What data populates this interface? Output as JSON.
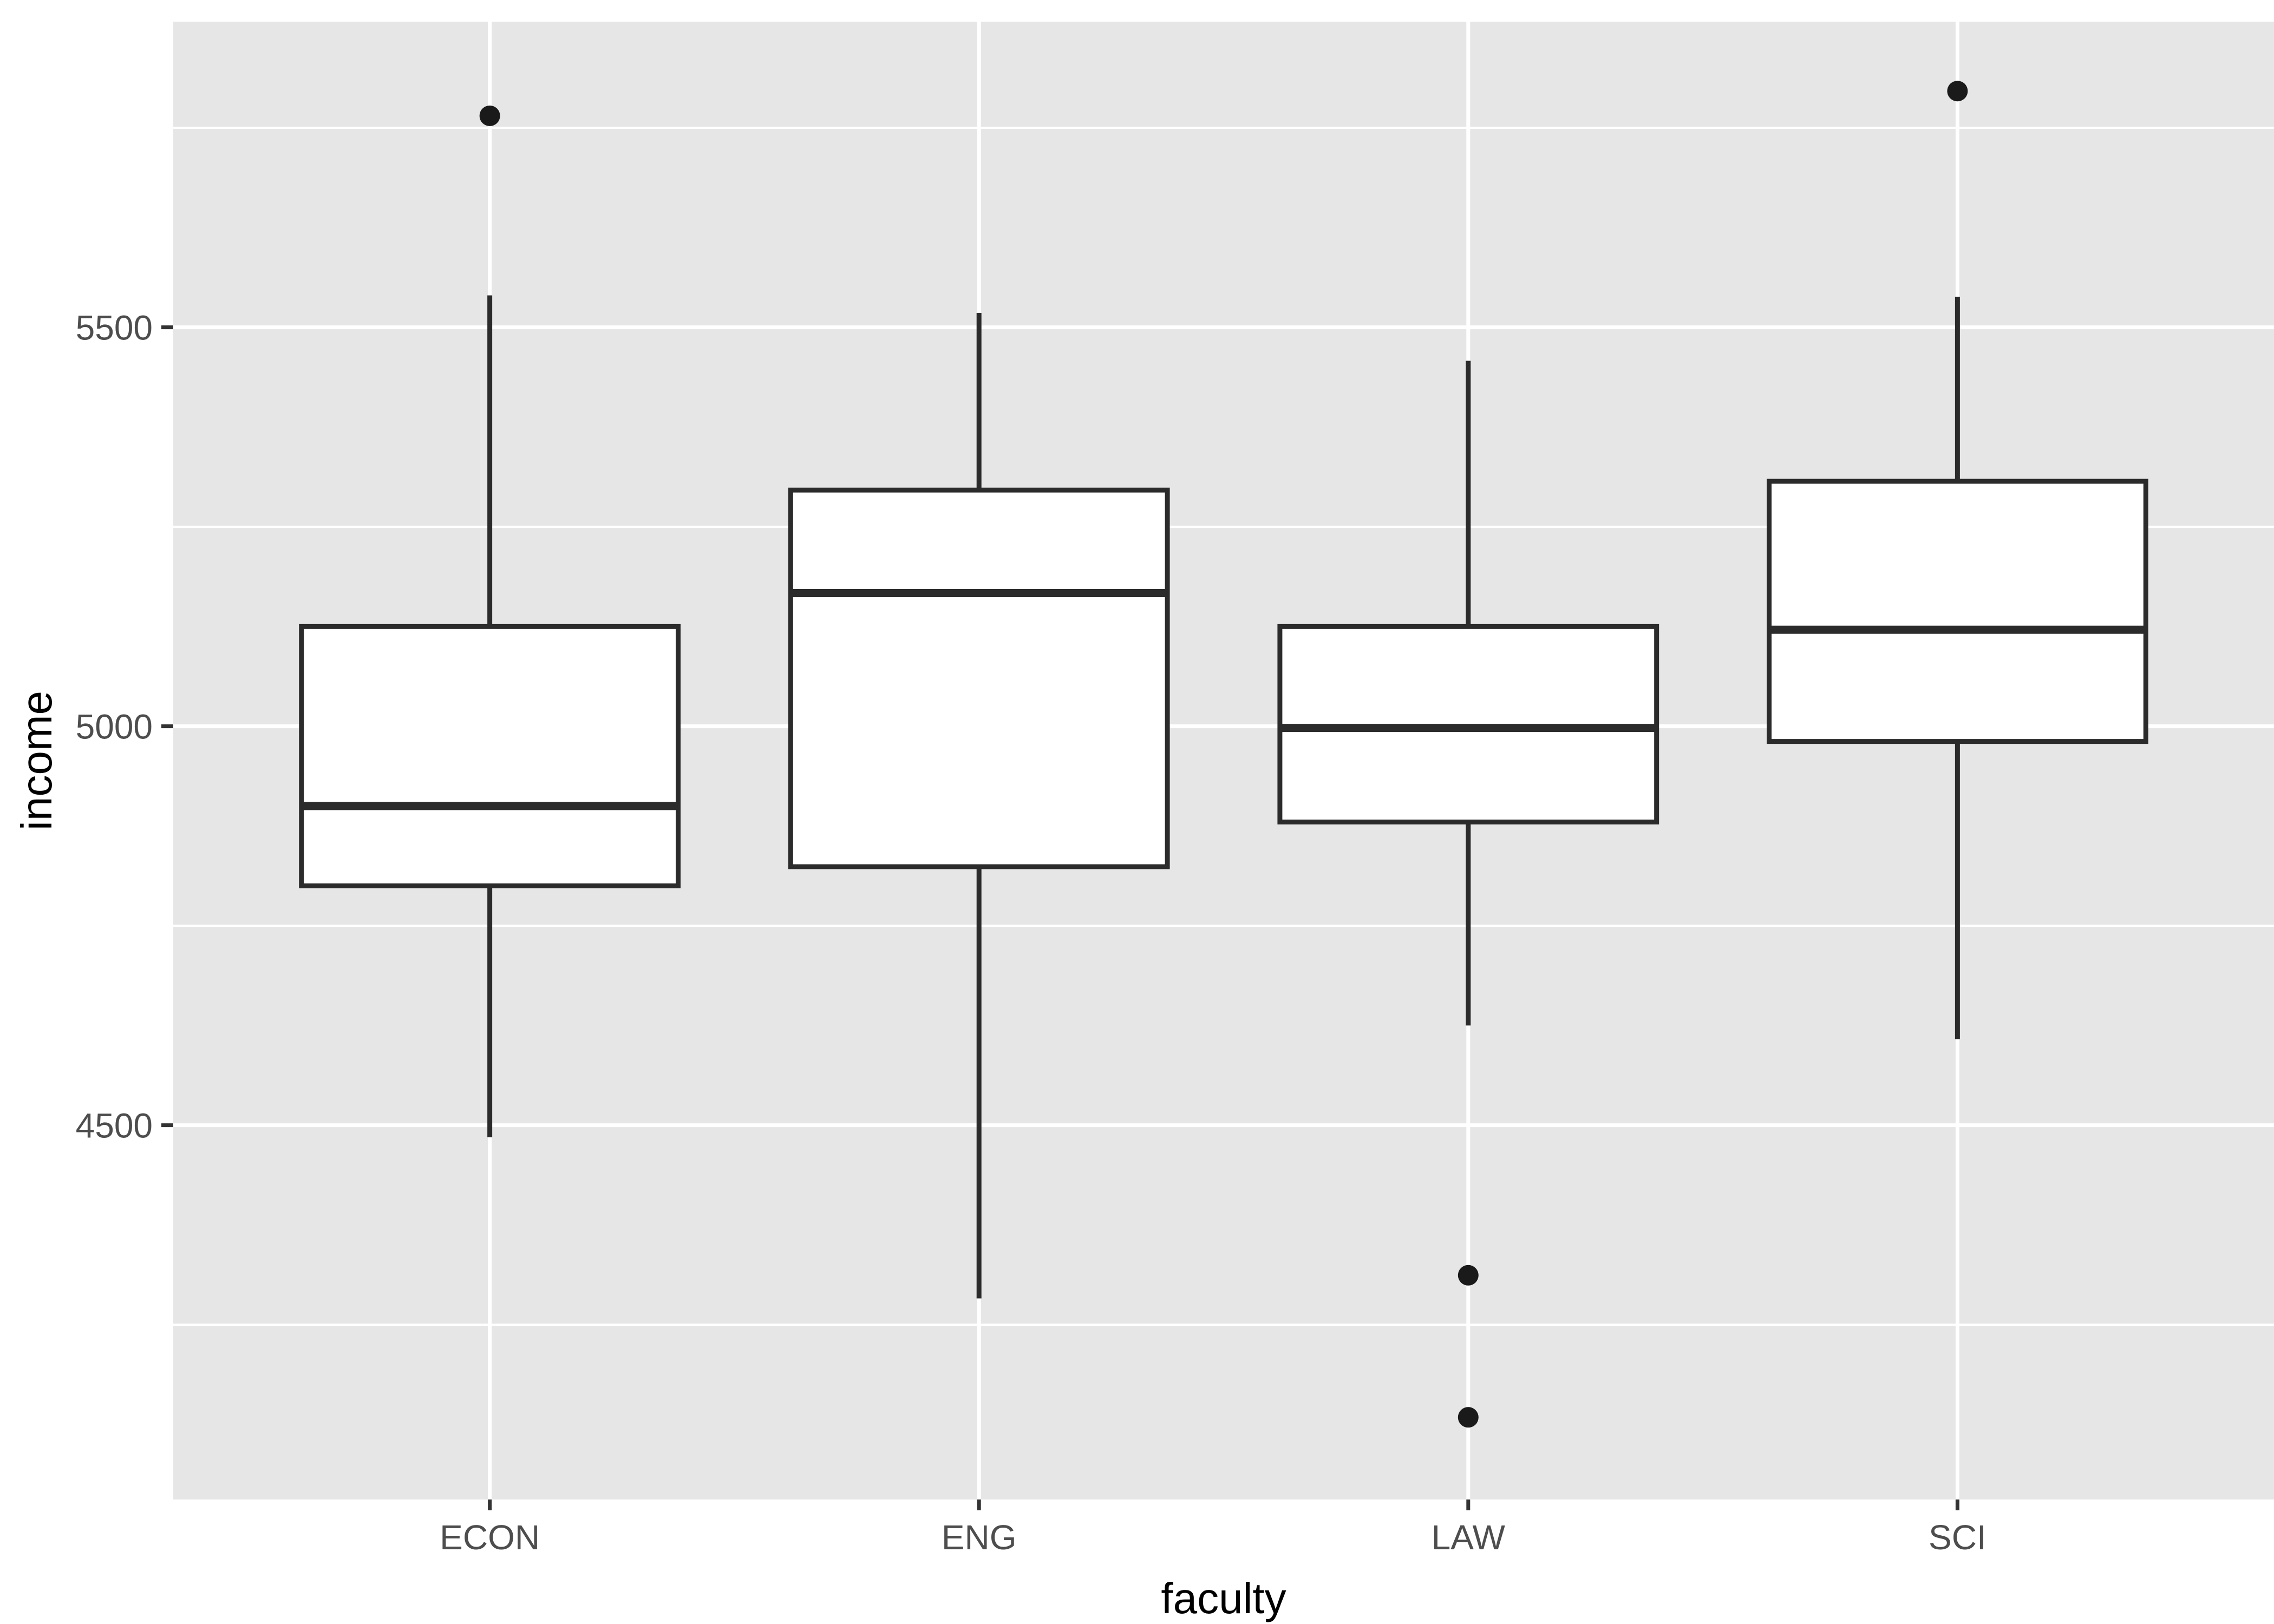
{
  "chart_data": {
    "type": "boxplot",
    "title": "",
    "xlabel": "faculty",
    "ylabel": "income",
    "categories": [
      "ECON",
      "ENG",
      "LAW",
      "SCI"
    ],
    "ylim": [
      4031,
      5883
    ],
    "y_ticks": [
      4500,
      5000,
      5500
    ],
    "y_tick_labels": [
      "4500",
      "5000",
      "5500"
    ],
    "y_minor_ticks": [
      4250,
      4750,
      5250,
      5750
    ],
    "grid": true,
    "legend": "none",
    "series": [
      {
        "category": "ECON",
        "whisker_low": 4485,
        "q1": 4800,
        "median": 4900,
        "q3": 5125,
        "whisker_high": 5540,
        "outliers": [
          5765
        ]
      },
      {
        "category": "ENG",
        "whisker_low": 4283,
        "q1": 4824,
        "median": 5167,
        "q3": 5296,
        "whisker_high": 5518,
        "outliers": []
      },
      {
        "category": "LAW",
        "whisker_low": 4625,
        "q1": 4880,
        "median": 4998,
        "q3": 5125,
        "whisker_high": 5458,
        "outliers": [
          4312,
          4134
        ]
      },
      {
        "category": "SCI",
        "whisker_low": 4608,
        "q1": 4981,
        "median": 5121,
        "q3": 5307,
        "whisker_high": 5538,
        "outliers": [
          5796
        ]
      }
    ],
    "colors": {
      "panel_background": "#E6E6E6",
      "grid_line": "#FFFFFF",
      "box_stroke": "#2B2B2B",
      "box_fill": "#FFFFFF",
      "outlier_fill": "#1A1A1A",
      "tick_label": "#4D4D4D",
      "tick_mark": "#333333",
      "axis_title": "#000000",
      "page_background": "#FFFFFF"
    }
  }
}
